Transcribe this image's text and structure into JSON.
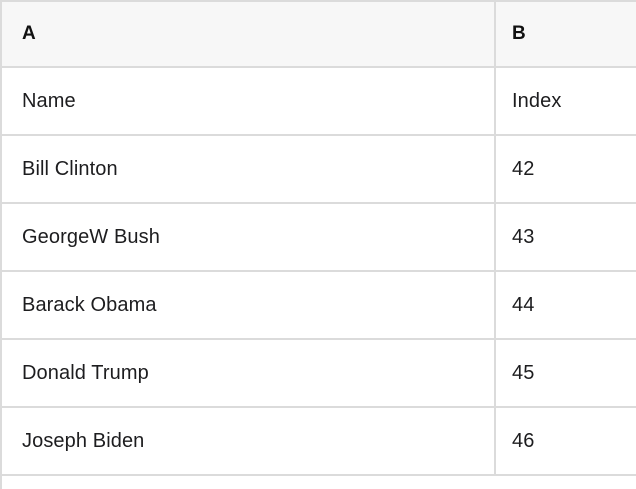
{
  "table": {
    "columns": [
      {
        "label": "A"
      },
      {
        "label": "B"
      }
    ],
    "rows": [
      {
        "a": "Name",
        "b": "Index"
      },
      {
        "a": "Bill Clinton",
        "b": "42"
      },
      {
        "a": "GeorgeW Bush",
        "b": "43"
      },
      {
        "a": "Barack Obama",
        "b": "44"
      },
      {
        "a": "Donald Trump",
        "b": "45"
      },
      {
        "a": "Joseph Biden",
        "b": "46"
      }
    ],
    "colors": {
      "header_bg": "#f7f7f7",
      "row_bg": "#ffffff",
      "border": "#dbdbdb",
      "text": "#1d1d1f"
    }
  }
}
